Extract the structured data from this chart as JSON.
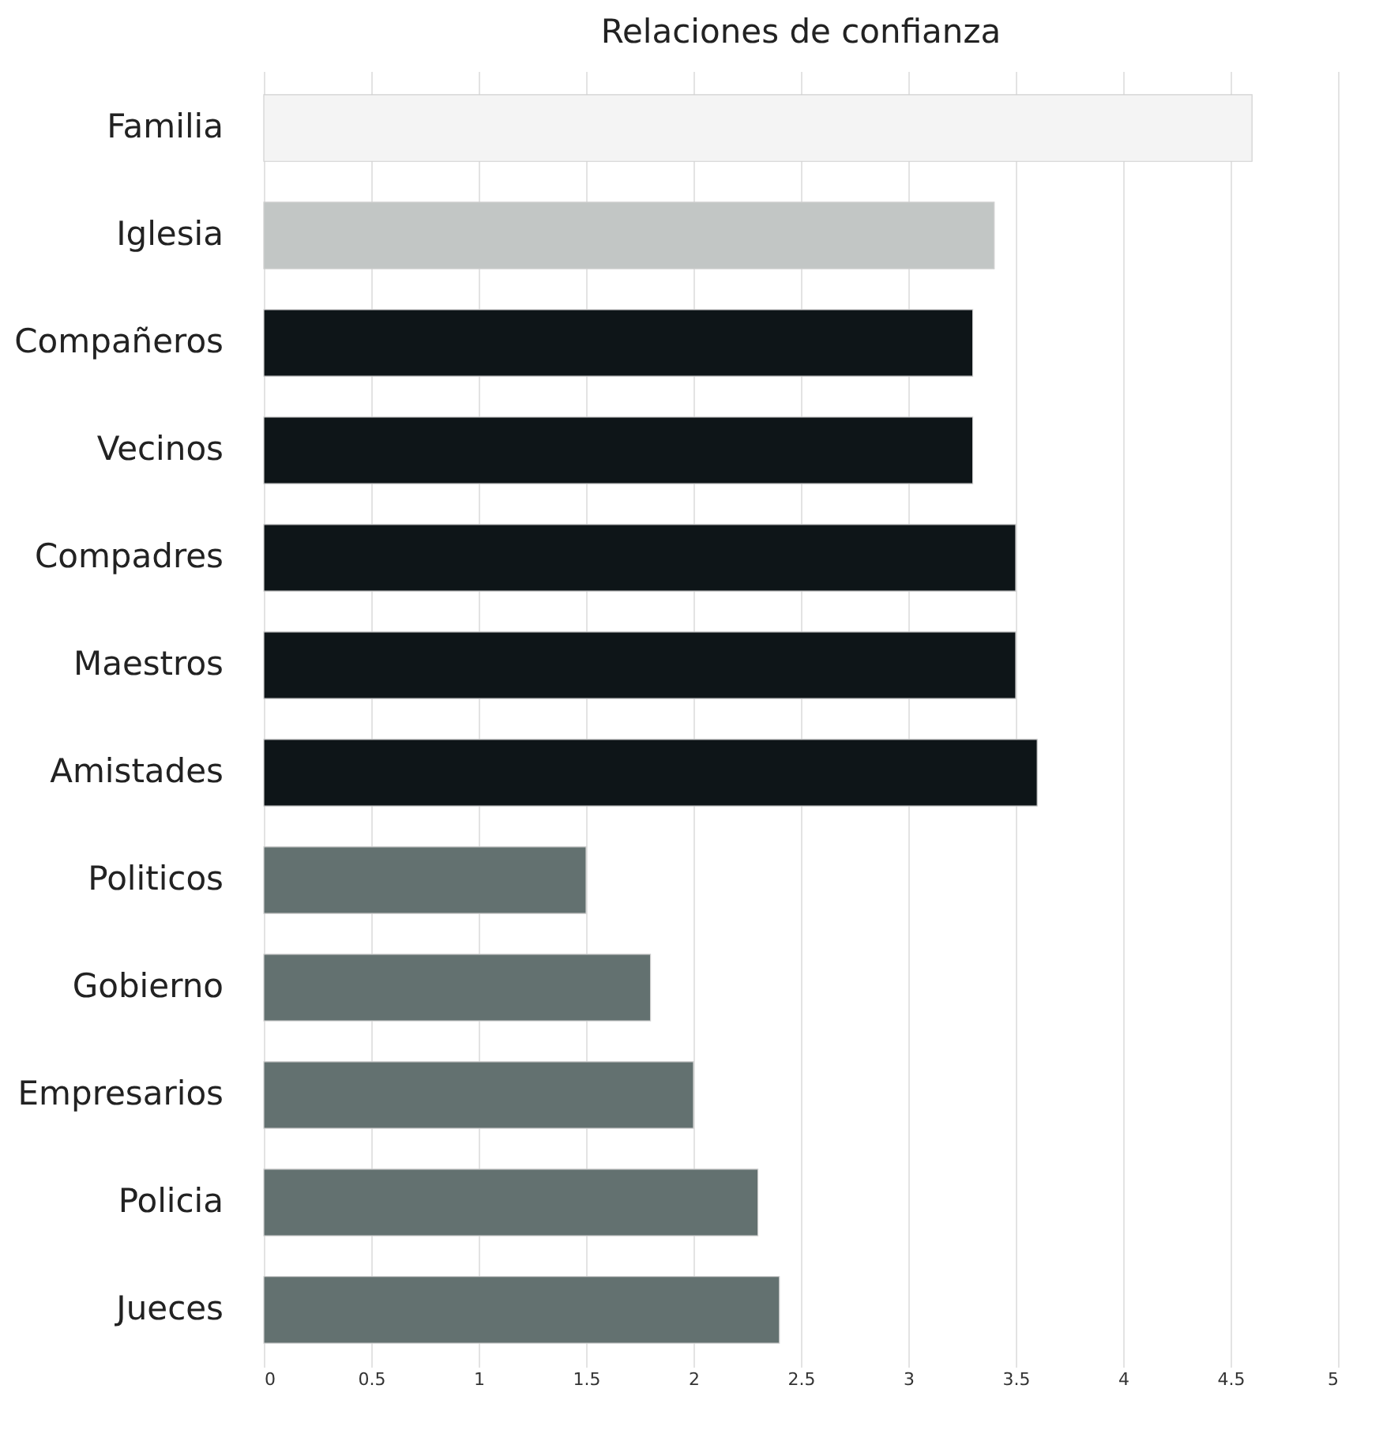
{
  "chart_data": {
    "type": "bar",
    "orientation": "horizontal",
    "title": "Relaciones de confianza",
    "categories": [
      "Familia",
      "Iglesia",
      "Compañeros",
      "Vecinos",
      "Compadres",
      "Maestros",
      "Amistades",
      "Politicos",
      "Gobierno",
      "Empresarios",
      "Policia",
      "Jueces"
    ],
    "values": [
      4.6,
      3.4,
      3.3,
      3.3,
      3.5,
      3.5,
      3.6,
      1.5,
      1.8,
      2.0,
      2.3,
      2.4
    ],
    "colors": [
      "#f4f4f4",
      "#c2c6c5",
      "#0e1518",
      "#0e1518",
      "#0e1518",
      "#0e1518",
      "#0e1518",
      "#637170",
      "#637170",
      "#637170",
      "#637170",
      "#637170"
    ],
    "xlim": [
      0,
      5
    ],
    "xticks": [
      0,
      0.5,
      1,
      1.5,
      2,
      2.5,
      3,
      3.5,
      4,
      4.5,
      5
    ],
    "grid": "x",
    "legend": false
  }
}
